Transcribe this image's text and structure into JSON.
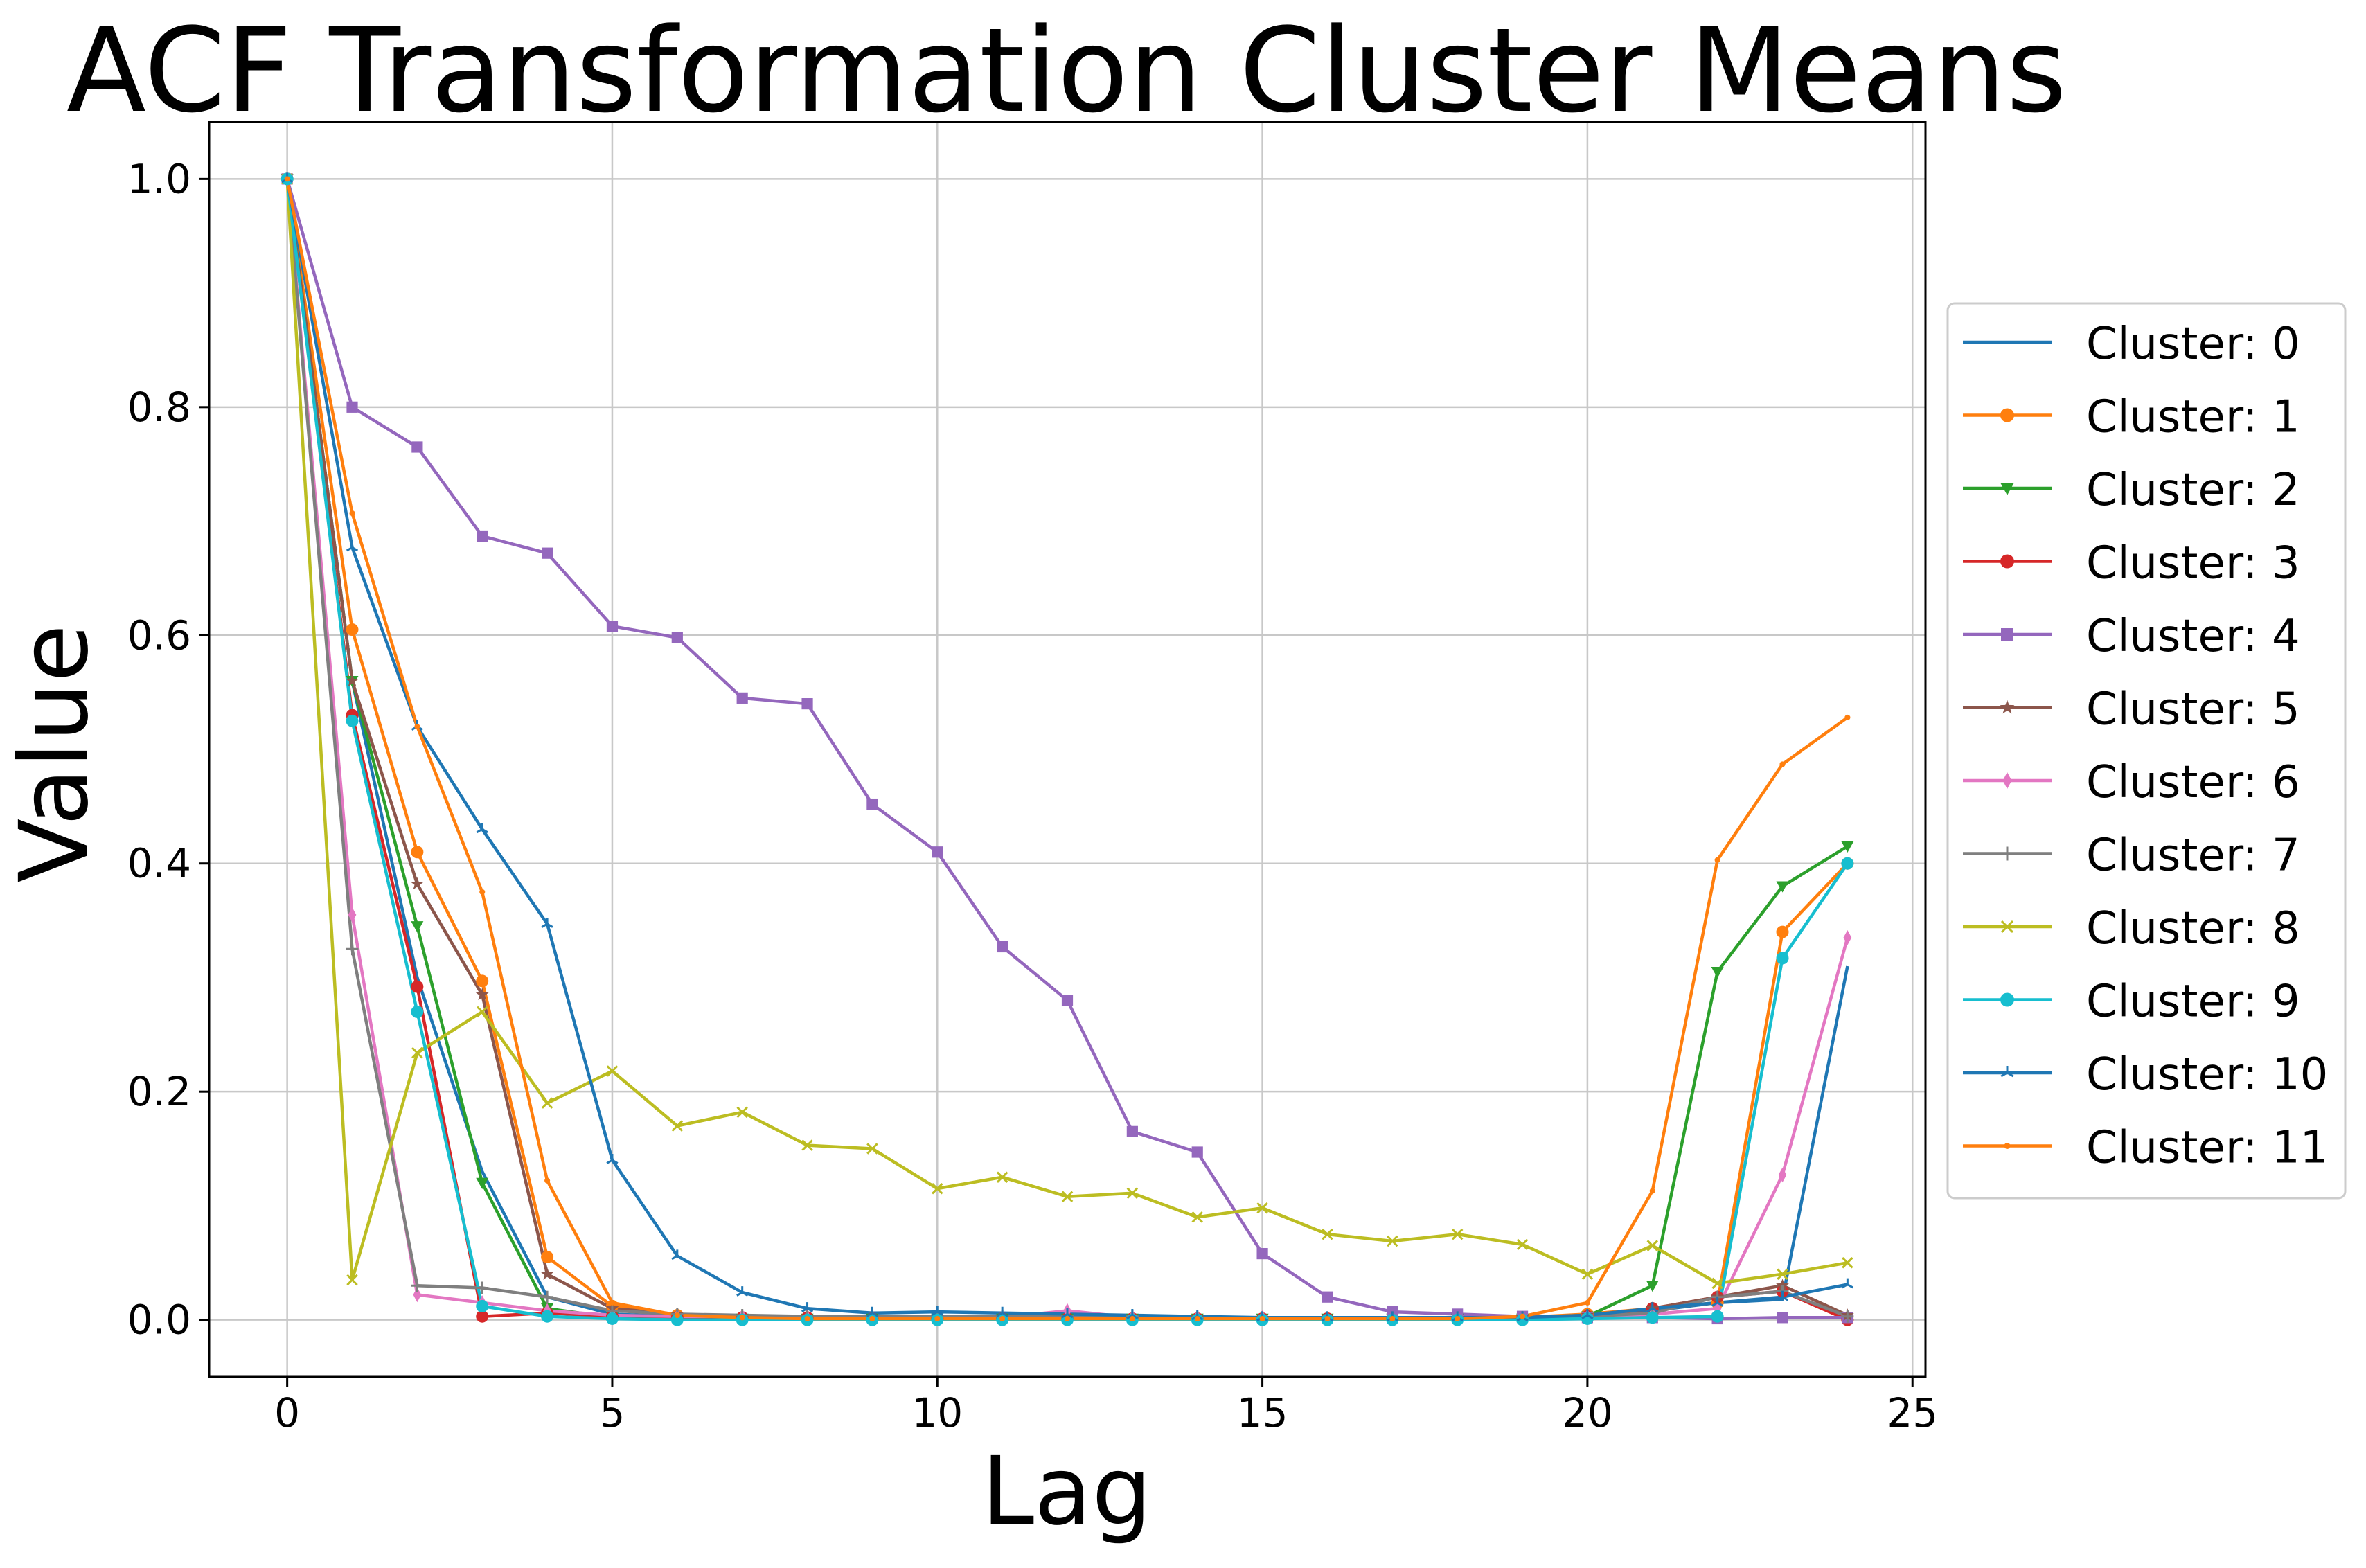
{
  "chart_data": {
    "type": "line",
    "title": "ACF Transformation Cluster Means",
    "xlabel": "Lag",
    "ylabel": "Value",
    "xlim": [
      -1.2,
      25.2
    ],
    "ylim": [
      -0.05,
      1.05
    ],
    "xticks": [
      0,
      5,
      10,
      15,
      20,
      25
    ],
    "xtick_labels": [
      "0",
      "5",
      "10",
      "15",
      "20",
      "25"
    ],
    "yticks": [
      0.0,
      0.2,
      0.4,
      0.6,
      0.8,
      1.0
    ],
    "ytick_labels": [
      "0.0",
      "0.2",
      "0.4",
      "0.6",
      "0.8",
      "1.0"
    ],
    "grid": true,
    "legend_position": "outside-right",
    "x": [
      0,
      1,
      2,
      3,
      4,
      5,
      6,
      7,
      8,
      9,
      10,
      11,
      12,
      13,
      14,
      15,
      16,
      17,
      18,
      19,
      20,
      21,
      22,
      23,
      24
    ],
    "series": [
      {
        "name": "Cluster: 0",
        "color": "#1f77b4",
        "marker": "none",
        "values": [
          1.0,
          0.56,
          0.3,
          0.13,
          0.02,
          0.005,
          0.003,
          0.003,
          0.002,
          0.002,
          0.002,
          0.002,
          0.002,
          0.002,
          0.002,
          0.002,
          0.002,
          0.002,
          0.002,
          0.002,
          0.003,
          0.008,
          0.015,
          0.018,
          0.31
        ]
      },
      {
        "name": "Cluster: 1",
        "color": "#ff7f0e",
        "marker": "circle",
        "values": [
          1.0,
          0.605,
          0.41,
          0.297,
          0.055,
          0.012,
          0.004,
          0.002,
          0.001,
          0.001,
          0.001,
          0.001,
          0.001,
          0.001,
          0.001,
          0.001,
          0.001,
          0.001,
          0.001,
          0.002,
          0.005,
          0.01,
          0.015,
          0.34,
          0.4
        ]
      },
      {
        "name": "Cluster: 2",
        "color": "#2ca02c",
        "marker": "triangle-down",
        "values": [
          1.0,
          0.56,
          0.345,
          0.12,
          0.01,
          0.002,
          0.001,
          0.001,
          0.001,
          0.001,
          0.001,
          0.001,
          0.001,
          0.001,
          0.001,
          0.001,
          0.001,
          0.001,
          0.001,
          0.001,
          0.003,
          0.03,
          0.305,
          0.38,
          0.415
        ]
      },
      {
        "name": "Cluster: 3",
        "color": "#d62728",
        "marker": "circle",
        "values": [
          1.0,
          0.53,
          0.292,
          0.003,
          0.006,
          0.003,
          0.002,
          0.002,
          0.002,
          0.001,
          0.001,
          0.001,
          0.001,
          0.001,
          0.001,
          0.001,
          0.001,
          0.001,
          0.001,
          0.001,
          0.003,
          0.01,
          0.02,
          0.025,
          0.0
        ]
      },
      {
        "name": "Cluster: 4",
        "color": "#9467bd",
        "marker": "square",
        "values": [
          1.0,
          0.8,
          0.765,
          0.687,
          0.672,
          0.608,
          0.598,
          0.545,
          0.54,
          0.452,
          0.41,
          0.327,
          0.28,
          0.165,
          0.147,
          0.058,
          0.02,
          0.007,
          0.005,
          0.003,
          0.002,
          0.002,
          0.001,
          0.002,
          0.002
        ]
      },
      {
        "name": "Cluster: 5",
        "color": "#8c564b",
        "marker": "star",
        "values": [
          1.0,
          0.56,
          0.382,
          0.285,
          0.04,
          0.01,
          0.005,
          0.003,
          0.002,
          0.002,
          0.002,
          0.002,
          0.002,
          0.002,
          0.002,
          0.001,
          0.001,
          0.001,
          0.001,
          0.002,
          0.004,
          0.01,
          0.02,
          0.03,
          0.004
        ]
      },
      {
        "name": "Cluster: 6",
        "color": "#e377c2",
        "marker": "thin-diamond",
        "values": [
          1.0,
          0.355,
          0.022,
          0.015,
          0.008,
          0.004,
          0.003,
          0.003,
          0.002,
          0.002,
          0.002,
          0.002,
          0.008,
          0.002,
          0.002,
          0.002,
          0.001,
          0.001,
          0.001,
          0.001,
          0.003,
          0.005,
          0.01,
          0.127,
          0.335
        ]
      },
      {
        "name": "Cluster: 7",
        "color": "#7f7f7f",
        "marker": "plus",
        "values": [
          1.0,
          0.325,
          0.03,
          0.028,
          0.02,
          0.008,
          0.005,
          0.004,
          0.003,
          0.003,
          0.003,
          0.003,
          0.003,
          0.003,
          0.002,
          0.002,
          0.002,
          0.002,
          0.002,
          0.002,
          0.003,
          0.006,
          0.02,
          0.025,
          0.003
        ]
      },
      {
        "name": "Cluster: 8",
        "color": "#bcbd22",
        "marker": "x",
        "values": [
          1.0,
          0.035,
          0.234,
          0.27,
          0.19,
          0.218,
          0.17,
          0.182,
          0.153,
          0.15,
          0.115,
          0.125,
          0.108,
          0.111,
          0.09,
          0.098,
          0.075,
          0.069,
          0.075,
          0.066,
          0.04,
          0.065,
          0.032,
          0.04,
          0.05
        ]
      },
      {
        "name": "Cluster: 9",
        "color": "#17becf",
        "marker": "circle",
        "values": [
          1.0,
          0.525,
          0.27,
          0.012,
          0.003,
          0.001,
          0.0,
          0.0,
          0.0,
          0.0,
          0.0,
          0.0,
          0.0,
          0.0,
          0.0,
          0.0,
          0.0,
          0.0,
          0.0,
          0.0,
          0.001,
          0.002,
          0.003,
          0.317,
          0.4
        ]
      },
      {
        "name": "Cluster: 10",
        "color": "#1f77b4",
        "marker": "tri",
        "values": [
          1.0,
          0.677,
          0.52,
          0.43,
          0.347,
          0.14,
          0.056,
          0.024,
          0.01,
          0.006,
          0.007,
          0.006,
          0.005,
          0.004,
          0.003,
          0.002,
          0.002,
          0.002,
          0.002,
          0.002,
          0.004,
          0.01,
          0.015,
          0.02,
          0.031
        ]
      },
      {
        "name": "Cluster: 11",
        "color": "#ff7f0e",
        "marker": "point",
        "values": [
          1.0,
          0.707,
          0.52,
          0.375,
          0.122,
          0.015,
          0.004,
          0.002,
          0.001,
          0.001,
          0.001,
          0.001,
          0.001,
          0.001,
          0.001,
          0.001,
          0.001,
          0.001,
          0.001,
          0.003,
          0.015,
          0.113,
          0.403,
          0.487,
          0.528
        ]
      }
    ]
  }
}
